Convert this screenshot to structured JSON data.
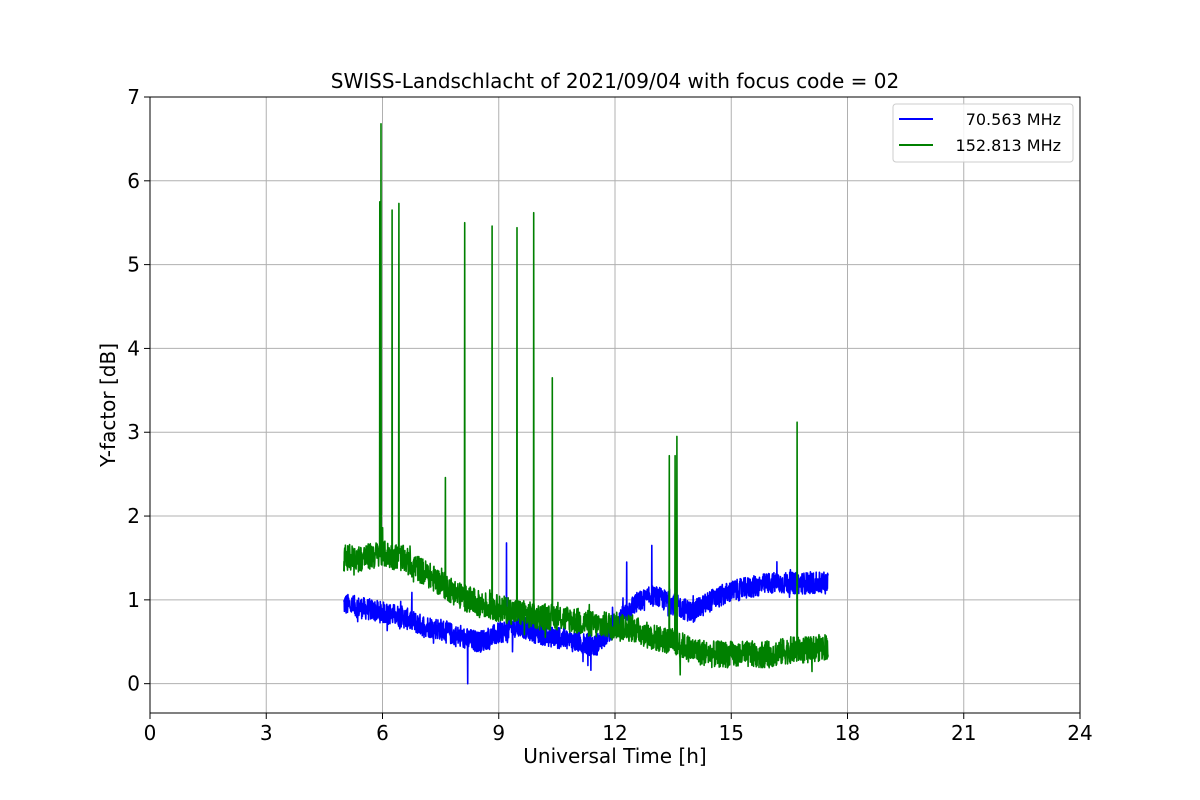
{
  "chart_data": {
    "type": "line",
    "title": "SWISS-Landschlacht of 2021/09/04 with focus code = 02",
    "xlabel": "Universal Time [h]",
    "ylabel": "Y-factor [dB]",
    "xlim": [
      0,
      24
    ],
    "ylim": [
      -0.35,
      7
    ],
    "xticks": [
      0,
      3,
      6,
      9,
      12,
      15,
      18,
      21,
      24
    ],
    "yticks": [
      0,
      1,
      2,
      3,
      4,
      5,
      6,
      7
    ],
    "grid": true,
    "legend_position": "top-right",
    "series": [
      {
        "name": "70.563 MHz",
        "color": "#0000ff",
        "x": [
          5.0,
          5.5,
          6.0,
          6.5,
          7.0,
          7.5,
          8.0,
          8.5,
          9.0,
          9.5,
          10.0,
          10.5,
          11.0,
          11.5,
          12.0,
          12.5,
          13.0,
          13.5,
          14.0,
          14.5,
          15.0,
          15.5,
          16.0,
          16.5,
          17.0,
          17.5
        ],
        "values": [
          0.95,
          0.9,
          0.85,
          0.8,
          0.7,
          0.65,
          0.55,
          0.5,
          0.6,
          0.7,
          0.6,
          0.55,
          0.5,
          0.45,
          0.7,
          0.95,
          1.05,
          0.95,
          0.85,
          1.0,
          1.1,
          1.15,
          1.2,
          1.2,
          1.2,
          1.2
        ]
      },
      {
        "name": "152.813 MHz",
        "color": "#008000",
        "x": [
          5.0,
          5.5,
          6.0,
          6.5,
          7.0,
          7.5,
          8.0,
          8.5,
          9.0,
          9.5,
          10.0,
          10.5,
          11.0,
          11.5,
          12.0,
          12.5,
          13.0,
          13.5,
          14.0,
          14.5,
          15.0,
          15.5,
          16.0,
          16.5,
          17.0,
          17.5
        ],
        "values": [
          1.5,
          1.5,
          1.55,
          1.5,
          1.35,
          1.2,
          1.05,
          0.95,
          0.9,
          0.85,
          0.8,
          0.8,
          0.75,
          0.7,
          0.7,
          0.65,
          0.55,
          0.5,
          0.4,
          0.35,
          0.35,
          0.35,
          0.35,
          0.4,
          0.4,
          0.45
        ]
      }
    ],
    "annotations": [
      {
        "series": "152.813 MHz",
        "type": "spikes",
        "x": [
          5.93,
          5.96,
          6.25,
          6.42,
          7.62,
          8.12,
          8.83,
          9.47,
          9.9,
          10.38,
          13.4,
          13.55,
          13.6,
          16.7
        ],
        "values": [
          5.75,
          6.68,
          5.65,
          5.73,
          2.46,
          5.5,
          5.46,
          5.44,
          5.62,
          3.65,
          2.72,
          2.72,
          2.95,
          3.12
        ]
      },
      {
        "series": "70.563 MHz",
        "type": "spikes",
        "x": [
          8.2,
          9.2,
          12.3,
          12.95
        ],
        "values": [
          0.0,
          1.68,
          1.45,
          1.65
        ]
      }
    ]
  }
}
